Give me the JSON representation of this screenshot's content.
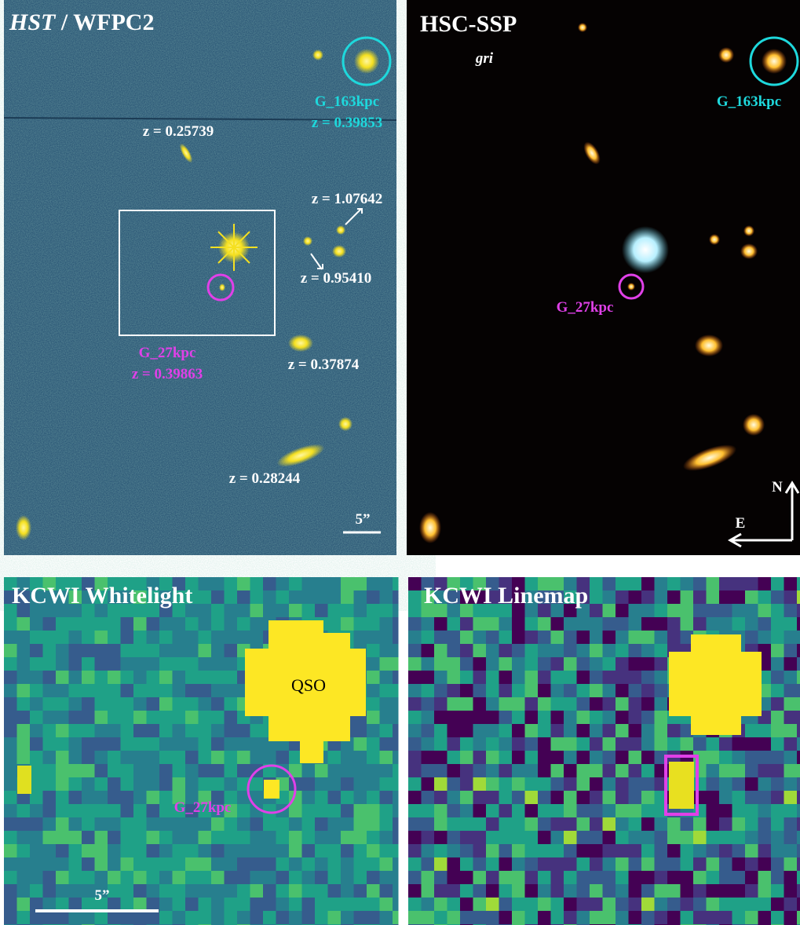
{
  "panels": [
    {
      "title_italic": "HST",
      "title": "/ WFPC2",
      "labels": [
        "G_163kpc",
        "z = 0.39853",
        "z = 0.25739",
        "z = 1.07642",
        "z = 0.95410",
        "G_27kpc",
        "z = 0.39863",
        "z = 0.37874",
        "z = 0.28244"
      ],
      "scale_bar": "5”"
    },
    {
      "title": "HSC-SSP",
      "subtitle": "gri",
      "labels": [
        "G_163kpc",
        "G_27kpc"
      ],
      "compass": [
        "N",
        "E"
      ]
    },
    {
      "title": "KCWI Whitelight",
      "labels": [
        "QSO",
        "G_27kpc"
      ],
      "scale_bar": "5”"
    },
    {
      "title": "KCWI Linemap"
    }
  ]
}
